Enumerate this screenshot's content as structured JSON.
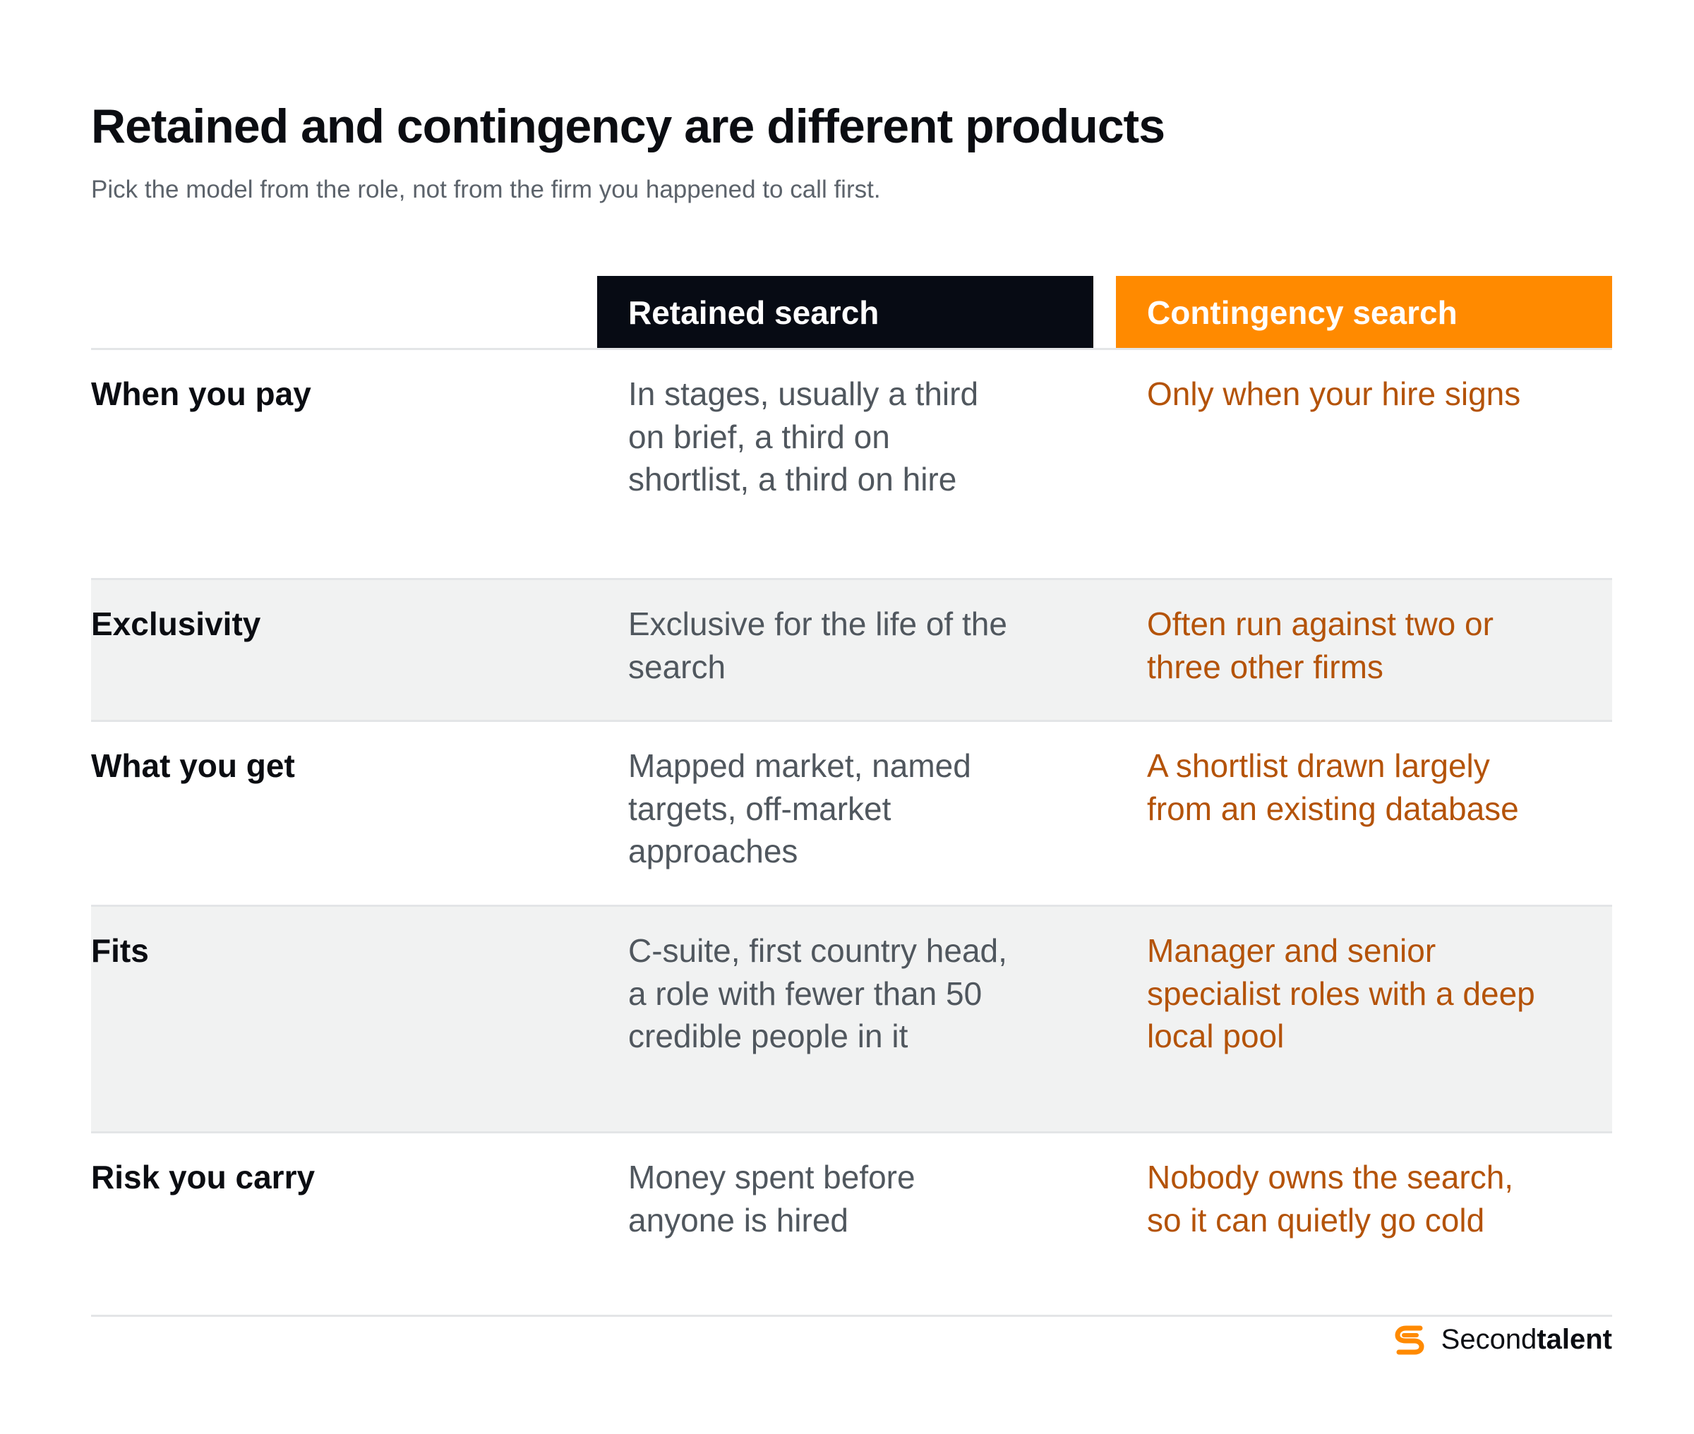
{
  "header": {
    "title": "Retained and contingency are different products",
    "subtitle": "Pick the model from the role, not from the firm you happened to call first."
  },
  "columns": {
    "retained": "Retained search",
    "contingency": "Contingency search"
  },
  "rows": [
    {
      "label": "When you pay",
      "retained": "In stages, usually a third on brief, a third on shortlist, a third on hire",
      "contingency": "Only when your hire signs"
    },
    {
      "label": "Exclusivity",
      "retained": "Exclusive for the life of the search",
      "contingency": "Often run against two or three other firms"
    },
    {
      "label": "What you get",
      "retained": "Mapped market, named targets, off-market approaches",
      "contingency": "A shortlist drawn largely from an existing database"
    },
    {
      "label": "Fits",
      "retained": "C-suite, first country head, a role with fewer than 50 credible people in it",
      "contingency": "Manager and senior specialist roles with a deep local pool"
    },
    {
      "label": "Risk you carry",
      "retained": "Money spent before anyone is hired",
      "contingency": "Nobody owns the search, so it can quietly go cold"
    }
  ],
  "brand": {
    "logo_icon": "secondtalent-logo-icon",
    "name_regular": "Second",
    "name_bold": "talent"
  },
  "colors": {
    "retained_header": "#070b14",
    "contingency_header": "#ff8a00",
    "contingency_text": "#b45309",
    "shaded_row": "#f1f2f2"
  }
}
